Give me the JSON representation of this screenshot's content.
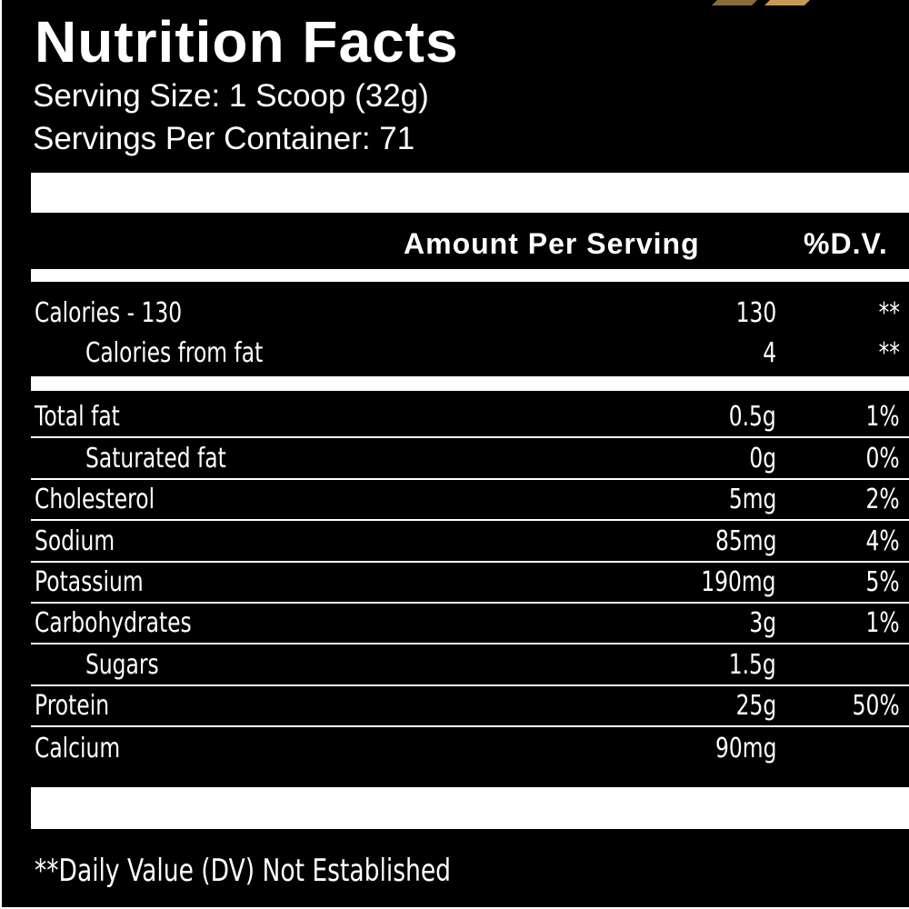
{
  "panel": {
    "title": "Nutrition Facts",
    "serving_size": "Serving Size: 1 Scoop (32g)",
    "servings_per_container": "Servings Per Container: 71",
    "header_amount": "Amount Per Serving",
    "header_dv": "%D.V."
  },
  "calories": [
    {
      "label": "Calories - 130",
      "amount": "130",
      "dv": "**"
    },
    {
      "label": "Calories from fat",
      "amount": "4",
      "dv": "**"
    }
  ],
  "nutrients": [
    {
      "label": "Total fat",
      "amount": "0.5g",
      "dv": "1%"
    },
    {
      "label": "Saturated fat",
      "amount": "0g",
      "dv": "0%"
    },
    {
      "label": "Cholesterol",
      "amount": "5mg",
      "dv": "2%"
    },
    {
      "label": "Sodium",
      "amount": "85mg",
      "dv": "4%"
    },
    {
      "label": "Potassium",
      "amount": "190mg",
      "dv": "5%"
    },
    {
      "label": "Carbohydrates",
      "amount": "3g",
      "dv": "1%"
    },
    {
      "label": "Sugars",
      "amount": "1.5g",
      "dv": ""
    },
    {
      "label": "Protein",
      "amount": "25g",
      "dv": "50%"
    },
    {
      "label": "Calcium",
      "amount": "90mg",
      "dv": ""
    }
  ],
  "footnote": "**Daily Value (DV) Not Established",
  "colors": {
    "background": "#000000",
    "text": "#ffffff",
    "accent_dark": "#8a6a3a",
    "accent_light": "#c49a56"
  }
}
